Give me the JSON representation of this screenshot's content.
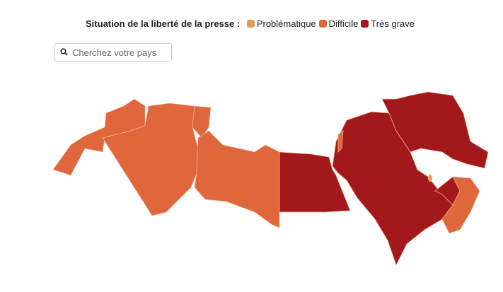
{
  "legend": {
    "title": "Situation de la liberté de la presse :",
    "items": [
      {
        "label": "Problématique",
        "color": "#e39a52"
      },
      {
        "label": "Difficile",
        "color": "#e0663c"
      },
      {
        "label": "Très grave",
        "color": "#a3191b"
      }
    ]
  },
  "search": {
    "placeholder": "Cherchez votre pays"
  }
}
